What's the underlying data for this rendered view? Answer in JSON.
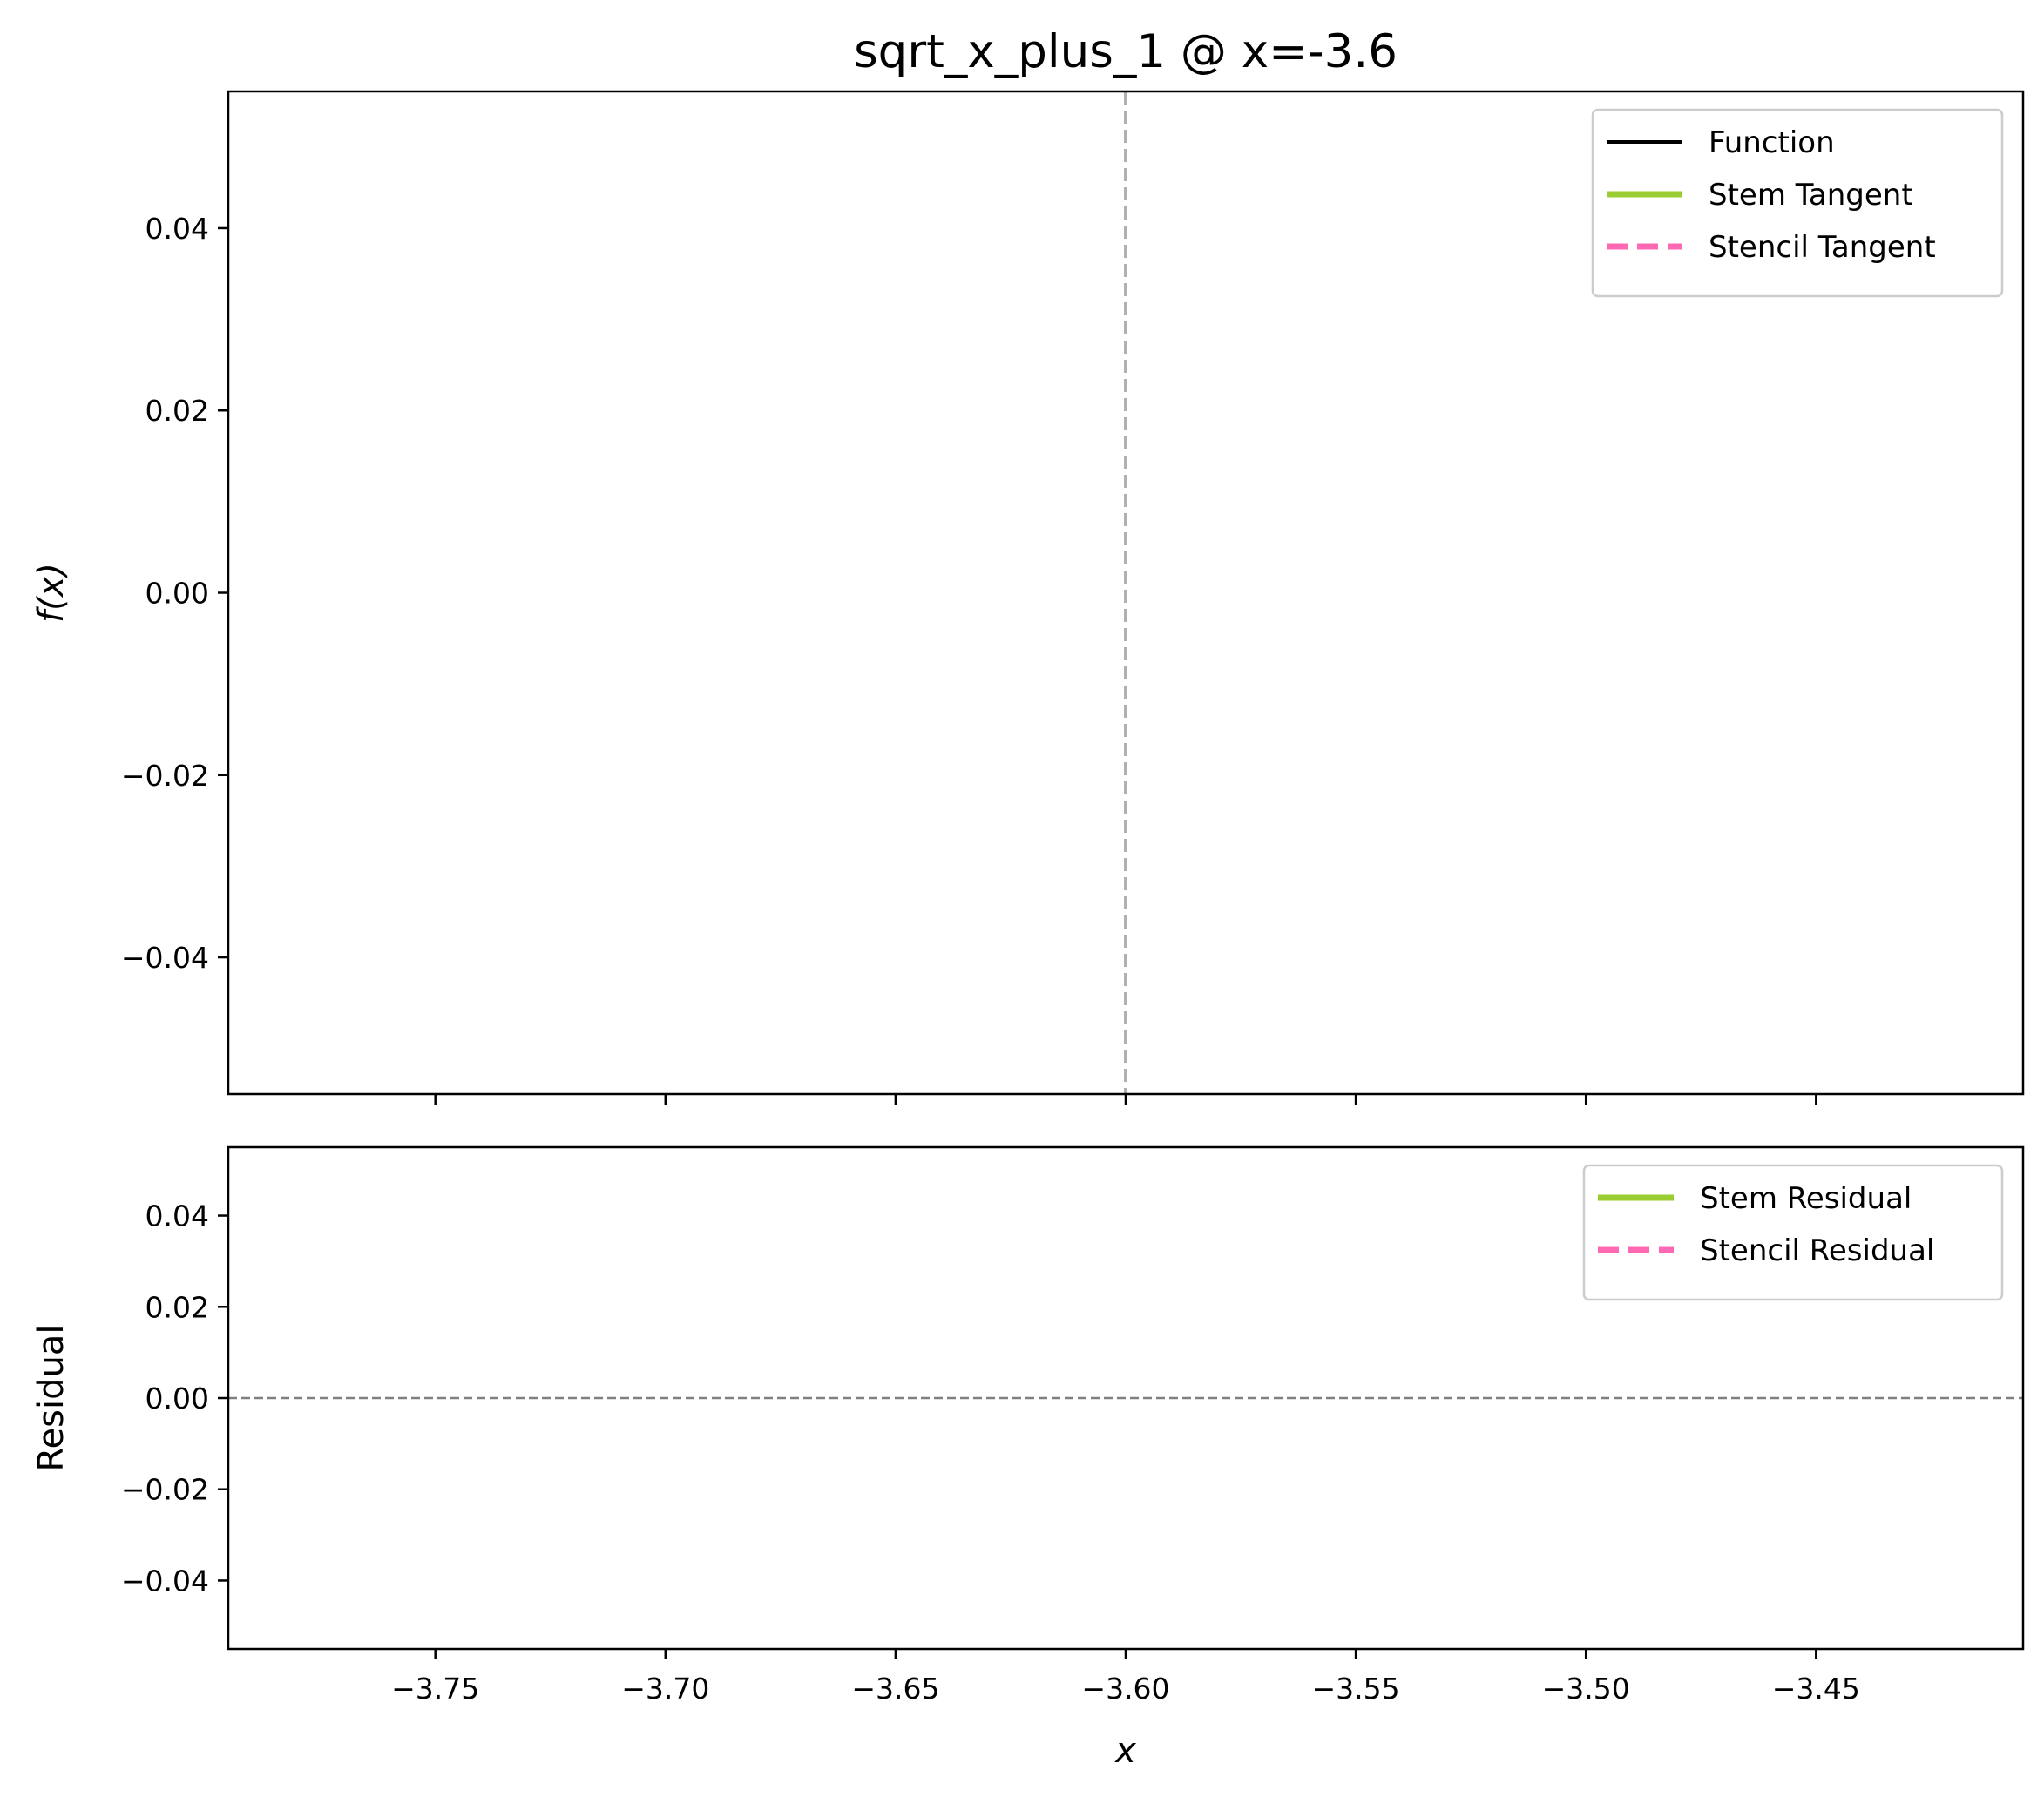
{
  "chart_data": {
    "title": "sqrt_x_plus_1 @ x=-3.6",
    "colors": {
      "function": "#000000",
      "stem": "#9acd32",
      "stencil": "#ff69b4",
      "vline": "#b0b0b0",
      "zero_line": "#808080"
    },
    "panels": [
      {
        "id": "top",
        "type": "line",
        "ylabel": "f(x)",
        "xlim": [
          -3.795,
          -3.405
        ],
        "ylim": [
          -0.055,
          0.055
        ],
        "yticks": [
          -0.04,
          -0.02,
          0.0,
          0.02,
          0.04
        ],
        "ytick_labels": [
          "−0.04",
          "−0.02",
          "0.00",
          "0.02",
          "0.04"
        ],
        "vline_x": -3.6,
        "legend": {
          "placement": "top-right",
          "entries": [
            {
              "label": "Function",
              "color_key": "function",
              "style": "solid"
            },
            {
              "label": "Stem Tangent",
              "color_key": "stem",
              "style": "solid"
            },
            {
              "label": "Stencil Tangent",
              "color_key": "stencil",
              "style": "dashed"
            }
          ]
        },
        "series": []
      },
      {
        "id": "bottom",
        "type": "line",
        "ylabel": "Residual",
        "xlabel": "x",
        "xlim": [
          -3.795,
          -3.405
        ],
        "ylim": [
          -0.055,
          0.055
        ],
        "yticks": [
          -0.04,
          -0.02,
          0.0,
          0.02,
          0.04
        ],
        "ytick_labels": [
          "−0.04",
          "−0.02",
          "0.00",
          "0.02",
          "0.04"
        ],
        "xticks": [
          -3.75,
          -3.7,
          -3.65,
          -3.6,
          -3.55,
          -3.5,
          -3.45
        ],
        "xtick_labels": [
          "−3.75",
          "−3.70",
          "−3.65",
          "−3.60",
          "−3.55",
          "−3.50",
          "−3.45"
        ],
        "hline_y": 0.0,
        "legend": {
          "placement": "top-right",
          "entries": [
            {
              "label": "Stem Residual",
              "color_key": "stem",
              "style": "solid"
            },
            {
              "label": "Stencil Residual",
              "color_key": "stencil",
              "style": "dashed"
            }
          ]
        },
        "series": []
      }
    ]
  }
}
